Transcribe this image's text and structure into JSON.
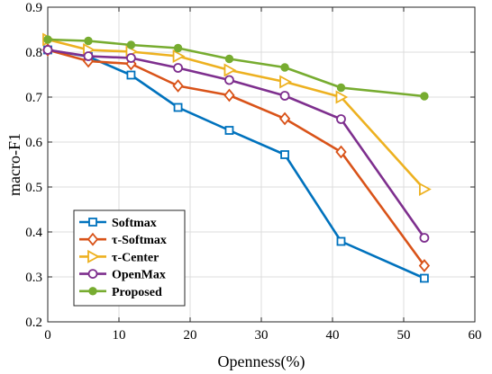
{
  "chart_data": {
    "type": "line",
    "xlabel": "Openness(%)",
    "ylabel": "macro-F1",
    "xlim": [
      0,
      60
    ],
    "ylim": [
      0.2,
      0.9
    ],
    "xticks": [
      "0",
      "10",
      "20",
      "30",
      "40",
      "50",
      "60"
    ],
    "yticks": [
      "0.2",
      "0.3",
      "0.4",
      "0.5",
      "0.6",
      "0.7",
      "0.8",
      "0.9"
    ],
    "grid": true,
    "legend_position": "bottom-left",
    "x": [
      0,
      5.7,
      11.7,
      18.3,
      25.5,
      33.3,
      41.2,
      52.9
    ],
    "series": [
      {
        "name": "Softmax",
        "color": "#0072BD",
        "marker": "square",
        "values": [
          0.805,
          0.79,
          0.749,
          0.677,
          0.626,
          0.572,
          0.379,
          0.297
        ]
      },
      {
        "name": "τ-Softmax",
        "color": "#D95319",
        "marker": "diamond",
        "values": [
          0.805,
          0.78,
          0.774,
          0.725,
          0.704,
          0.652,
          0.578,
          0.325
        ]
      },
      {
        "name": "τ-Center",
        "color": "#EDB120",
        "marker": "triangle",
        "values": [
          0.828,
          0.805,
          0.801,
          0.791,
          0.76,
          0.734,
          0.7,
          0.495
        ]
      },
      {
        "name": "OpenMax",
        "color": "#7E2F8E",
        "marker": "circle",
        "values": [
          0.805,
          0.791,
          0.787,
          0.765,
          0.738,
          0.703,
          0.651,
          0.387
        ]
      },
      {
        "name": "Proposed",
        "color": "#77AC30",
        "marker": "dot",
        "values": [
          0.828,
          0.825,
          0.816,
          0.809,
          0.785,
          0.766,
          0.721,
          0.702
        ]
      }
    ]
  }
}
